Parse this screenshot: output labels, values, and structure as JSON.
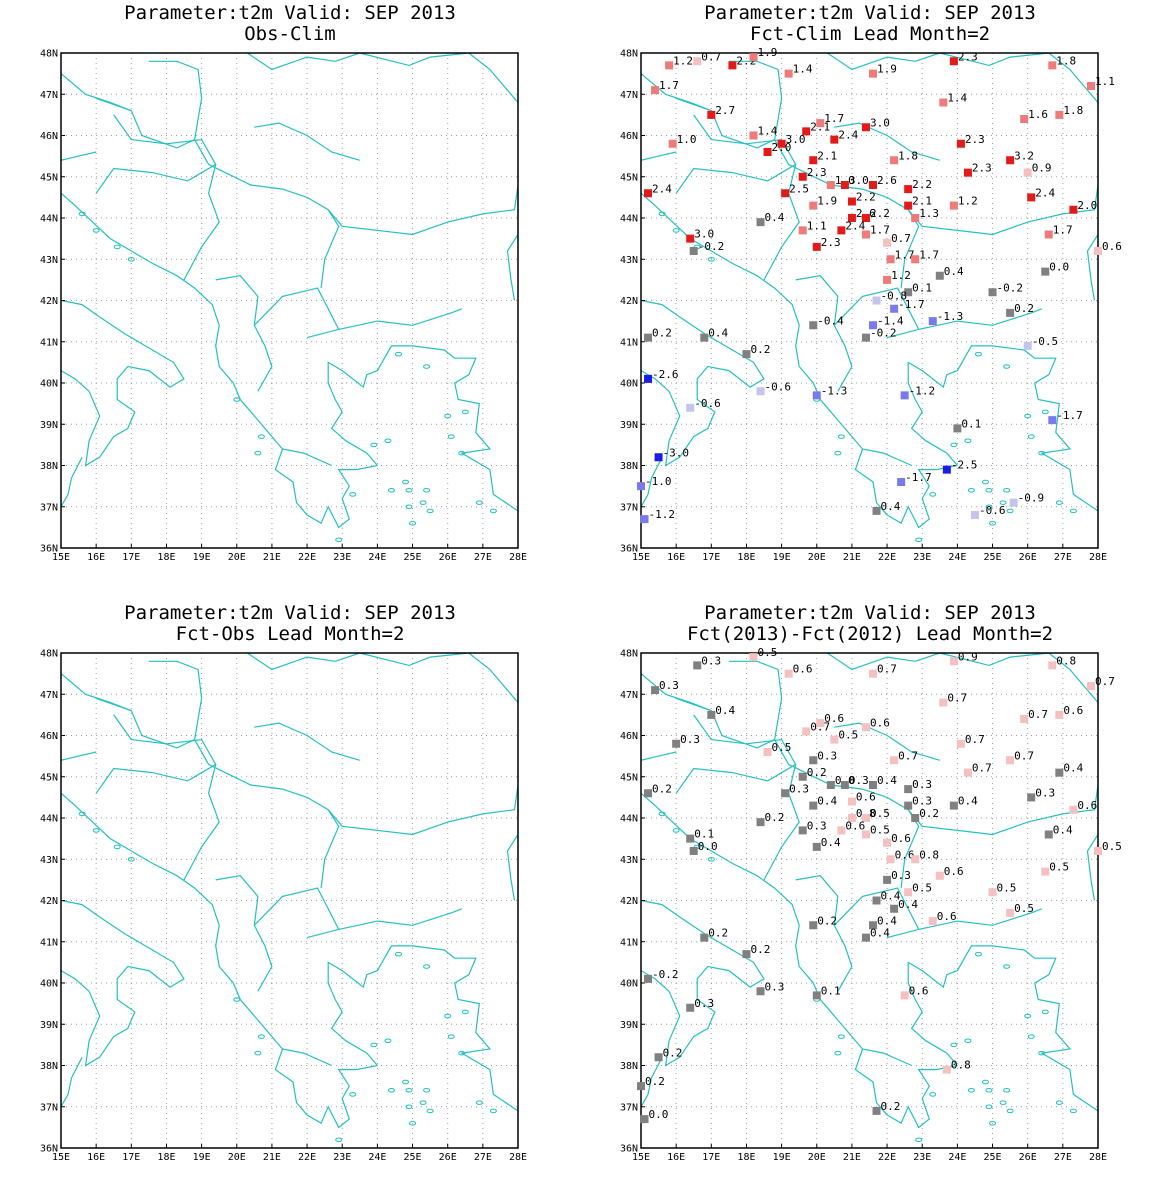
{
  "colors": {
    "coast": "#26c0c0",
    "grid": "#a0a0a0",
    "neutral": "#808080",
    "warm_light": "#f4c0c0",
    "warm_mid": "#ee7a7a",
    "warm_strong": "#e21a1a",
    "cool_light": "#c4c4ee",
    "cool_mid": "#7a7af0",
    "cool_strong": "#1c1ce8"
  },
  "axes": {
    "lon_labels": [
      "15E",
      "16E",
      "17E",
      "18E",
      "19E",
      "20E",
      "21E",
      "22E",
      "23E",
      "24E",
      "25E",
      "26E",
      "27E",
      "28E"
    ],
    "lat_labels": [
      "36N",
      "37N",
      "38N",
      "39N",
      "40N",
      "41N",
      "42N",
      "43N",
      "44N",
      "45N",
      "46N",
      "47N",
      "48N"
    ],
    "lon_range": [
      15,
      28
    ],
    "lat_range": [
      36,
      48
    ]
  },
  "panels": [
    {
      "id": "obs-clim",
      "title": "Parameter:t2m Valid: SEP 2013",
      "subtitle": "Obs-Clim",
      "stations": []
    },
    {
      "id": "fct-clim",
      "title": "Parameter:t2m Valid: SEP 2013",
      "subtitle": "Fct-Clim Lead Month=2",
      "stations": [
        {
          "lon": 15.8,
          "lat": 47.7,
          "v": "1.2"
        },
        {
          "lon": 16.6,
          "lat": 47.8,
          "v": "0.7"
        },
        {
          "lon": 17.6,
          "lat": 47.7,
          "v": "2.2"
        },
        {
          "lon": 18.2,
          "lat": 47.9,
          "v": "1.9"
        },
        {
          "lon": 19.2,
          "lat": 47.5,
          "v": "1.4"
        },
        {
          "lon": 21.6,
          "lat": 47.5,
          "v": "1.9"
        },
        {
          "lon": 23.9,
          "lat": 47.8,
          "v": "2.3"
        },
        {
          "lon": 26.7,
          "lat": 47.7,
          "v": "1.8"
        },
        {
          "lon": 27.8,
          "lat": 47.2,
          "v": "1.1"
        },
        {
          "lon": 15.4,
          "lat": 47.1,
          "v": "1.7"
        },
        {
          "lon": 17.0,
          "lat": 46.5,
          "v": "2.7"
        },
        {
          "lon": 23.6,
          "lat": 46.8,
          "v": "1.4"
        },
        {
          "lon": 26.9,
          "lat": 46.5,
          "v": "1.8"
        },
        {
          "lon": 25.9,
          "lat": 46.4,
          "v": "1.6"
        },
        {
          "lon": 18.2,
          "lat": 46.0,
          "v": "1.4"
        },
        {
          "lon": 20.1,
          "lat": 46.3,
          "v": "1.7"
        },
        {
          "lon": 19.7,
          "lat": 46.1,
          "v": "2.1"
        },
        {
          "lon": 20.5,
          "lat": 45.9,
          "v": "2.4"
        },
        {
          "lon": 21.4,
          "lat": 46.2,
          "v": "3.0"
        },
        {
          "lon": 15.9,
          "lat": 45.8,
          "v": "1.0"
        },
        {
          "lon": 19.0,
          "lat": 45.8,
          "v": "3.0"
        },
        {
          "lon": 24.1,
          "lat": 45.8,
          "v": "2.3"
        },
        {
          "lon": 18.6,
          "lat": 45.6,
          "v": "2.0"
        },
        {
          "lon": 19.9,
          "lat": 45.4,
          "v": "2.1"
        },
        {
          "lon": 22.2,
          "lat": 45.4,
          "v": "1.8"
        },
        {
          "lon": 25.5,
          "lat": 45.4,
          "v": "3.2"
        },
        {
          "lon": 19.6,
          "lat": 45.0,
          "v": "2.3"
        },
        {
          "lon": 24.3,
          "lat": 45.1,
          "v": "2.3"
        },
        {
          "lon": 26.0,
          "lat": 45.1,
          "v": "0.9"
        },
        {
          "lon": 20.4,
          "lat": 44.8,
          "v": "1.0"
        },
        {
          "lon": 20.8,
          "lat": 44.8,
          "v": "3.0"
        },
        {
          "lon": 21.6,
          "lat": 44.8,
          "v": "2.6"
        },
        {
          "lon": 15.2,
          "lat": 44.6,
          "v": "2.4"
        },
        {
          "lon": 19.1,
          "lat": 44.6,
          "v": "2.5"
        },
        {
          "lon": 22.6,
          "lat": 44.7,
          "v": "2.2"
        },
        {
          "lon": 26.1,
          "lat": 44.5,
          "v": "2.4"
        },
        {
          "lon": 19.9,
          "lat": 44.3,
          "v": "1.9"
        },
        {
          "lon": 21.0,
          "lat": 44.4,
          "v": "2.2"
        },
        {
          "lon": 22.6,
          "lat": 44.3,
          "v": "2.1"
        },
        {
          "lon": 23.9,
          "lat": 44.3,
          "v": "1.2"
        },
        {
          "lon": 27.3,
          "lat": 44.2,
          "v": "2.0"
        },
        {
          "lon": 21.0,
          "lat": 44.0,
          "v": "2.6"
        },
        {
          "lon": 21.4,
          "lat": 44.0,
          "v": "2.2"
        },
        {
          "lon": 22.8,
          "lat": 44.0,
          "v": "1.3"
        },
        {
          "lon": 18.4,
          "lat": 43.9,
          "v": "0.4"
        },
        {
          "lon": 19.6,
          "lat": 43.7,
          "v": "1.1"
        },
        {
          "lon": 20.7,
          "lat": 43.7,
          "v": "2.4"
        },
        {
          "lon": 21.4,
          "lat": 43.6,
          "v": "1.7"
        },
        {
          "lon": 26.6,
          "lat": 43.6,
          "v": "1.7"
        },
        {
          "lon": 16.4,
          "lat": 43.5,
          "v": "3.0"
        },
        {
          "lon": 22.0,
          "lat": 43.4,
          "v": "0.7"
        },
        {
          "lon": 20.0,
          "lat": 43.3,
          "v": "2.3"
        },
        {
          "lon": 16.5,
          "lat": 43.2,
          "v": "-0.2"
        },
        {
          "lon": 28.0,
          "lat": 43.2,
          "v": "0.6"
        },
        {
          "lon": 22.1,
          "lat": 43.0,
          "v": "1.7"
        },
        {
          "lon": 22.8,
          "lat": 43.0,
          "v": "1.7"
        },
        {
          "lon": 26.5,
          "lat": 42.7,
          "v": "0.0"
        },
        {
          "lon": 23.5,
          "lat": 42.6,
          "v": "0.4"
        },
        {
          "lon": 22.0,
          "lat": 42.5,
          "v": "1.2"
        },
        {
          "lon": 22.6,
          "lat": 42.2,
          "v": "0.1"
        },
        {
          "lon": 25.0,
          "lat": 42.2,
          "v": "-0.2"
        },
        {
          "lon": 21.7,
          "lat": 42.0,
          "v": "-0.8"
        },
        {
          "lon": 22.2,
          "lat": 41.8,
          "v": "-1.7"
        },
        {
          "lon": 25.5,
          "lat": 41.7,
          "v": "0.2"
        },
        {
          "lon": 23.3,
          "lat": 41.5,
          "v": "-1.3"
        },
        {
          "lon": 19.9,
          "lat": 41.4,
          "v": "-0.4"
        },
        {
          "lon": 21.6,
          "lat": 41.4,
          "v": "-1.4"
        },
        {
          "lon": 15.2,
          "lat": 41.1,
          "v": "0.2"
        },
        {
          "lon": 16.8,
          "lat": 41.1,
          "v": "0.4"
        },
        {
          "lon": 21.4,
          "lat": 41.1,
          "v": "-0.2"
        },
        {
          "lon": 26.0,
          "lat": 40.9,
          "v": "-0.5"
        },
        {
          "lon": 18.0,
          "lat": 40.7,
          "v": "0.2"
        },
        {
          "lon": 15.2,
          "lat": 40.1,
          "v": "-2.6"
        },
        {
          "lon": 18.4,
          "lat": 39.8,
          "v": "-0.6"
        },
        {
          "lon": 20.0,
          "lat": 39.7,
          "v": "-1.3"
        },
        {
          "lon": 22.5,
          "lat": 39.7,
          "v": "-1.2"
        },
        {
          "lon": 16.4,
          "lat": 39.4,
          "v": "-0.6"
        },
        {
          "lon": 26.7,
          "lat": 39.1,
          "v": "-1.7"
        },
        {
          "lon": 24.0,
          "lat": 38.9,
          "v": "0.1"
        },
        {
          "lon": 15.5,
          "lat": 38.2,
          "v": "-3.0"
        },
        {
          "lon": 23.7,
          "lat": 37.9,
          "v": "-2.5"
        },
        {
          "lon": 22.4,
          "lat": 37.6,
          "v": "-1.7"
        },
        {
          "lon": 15.0,
          "lat": 37.5,
          "v": "-1.0"
        },
        {
          "lon": 25.6,
          "lat": 37.1,
          "v": "-0.9"
        },
        {
          "lon": 21.7,
          "lat": 36.9,
          "v": "0.4"
        },
        {
          "lon": 24.5,
          "lat": 36.8,
          "v": "-0.6"
        },
        {
          "lon": 15.1,
          "lat": 36.7,
          "v": "-1.2"
        }
      ]
    },
    {
      "id": "fct-obs",
      "title": "Parameter:t2m Valid: SEP 2013",
      "subtitle": "Fct-Obs Lead Month=2",
      "stations": []
    },
    {
      "id": "fct-diff",
      "title": "Parameter:t2m Valid: SEP 2013",
      "subtitle": "Fct(2013)-Fct(2012) Lead Month=2",
      "stations": [
        {
          "lon": 16.6,
          "lat": 47.7,
          "v": "0.3"
        },
        {
          "lon": 18.2,
          "lat": 47.9,
          "v": "0.5"
        },
        {
          "lon": 19.2,
          "lat": 47.5,
          "v": "0.6"
        },
        {
          "lon": 21.6,
          "lat": 47.5,
          "v": "0.7"
        },
        {
          "lon": 23.9,
          "lat": 47.8,
          "v": "0.9"
        },
        {
          "lon": 26.7,
          "lat": 47.7,
          "v": "0.8"
        },
        {
          "lon": 27.8,
          "lat": 47.2,
          "v": "0.7"
        },
        {
          "lon": 15.4,
          "lat": 47.1,
          "v": "0.3"
        },
        {
          "lon": 17.0,
          "lat": 46.5,
          "v": "0.4"
        },
        {
          "lon": 23.6,
          "lat": 46.8,
          "v": "0.7"
        },
        {
          "lon": 25.9,
          "lat": 46.4,
          "v": "0.7"
        },
        {
          "lon": 26.9,
          "lat": 46.5,
          "v": "0.6"
        },
        {
          "lon": 20.1,
          "lat": 46.3,
          "v": "0.6"
        },
        {
          "lon": 19.7,
          "lat": 46.1,
          "v": "0.7"
        },
        {
          "lon": 21.4,
          "lat": 46.2,
          "v": "0.6"
        },
        {
          "lon": 16.0,
          "lat": 45.8,
          "v": "0.3"
        },
        {
          "lon": 20.5,
          "lat": 45.9,
          "v": "0.5"
        },
        {
          "lon": 24.1,
          "lat": 45.8,
          "v": "0.7"
        },
        {
          "lon": 18.6,
          "lat": 45.6,
          "v": "0.5"
        },
        {
          "lon": 19.9,
          "lat": 45.4,
          "v": "0.3"
        },
        {
          "lon": 22.2,
          "lat": 45.4,
          "v": "0.7"
        },
        {
          "lon": 25.5,
          "lat": 45.4,
          "v": "0.7"
        },
        {
          "lon": 24.3,
          "lat": 45.1,
          "v": "0.7"
        },
        {
          "lon": 26.9,
          "lat": 45.1,
          "v": "0.4"
        },
        {
          "lon": 19.6,
          "lat": 45.0,
          "v": "0.2"
        },
        {
          "lon": 20.4,
          "lat": 44.8,
          "v": "0.0"
        },
        {
          "lon": 20.8,
          "lat": 44.8,
          "v": "0.3"
        },
        {
          "lon": 21.6,
          "lat": 44.8,
          "v": "0.4"
        },
        {
          "lon": 22.6,
          "lat": 44.7,
          "v": "0.3"
        },
        {
          "lon": 19.1,
          "lat": 44.6,
          "v": "0.3"
        },
        {
          "lon": 15.2,
          "lat": 44.6,
          "v": "0.2"
        },
        {
          "lon": 26.1,
          "lat": 44.5,
          "v": "0.3"
        },
        {
          "lon": 21.0,
          "lat": 44.4,
          "v": "0.6"
        },
        {
          "lon": 19.9,
          "lat": 44.3,
          "v": "0.4"
        },
        {
          "lon": 22.6,
          "lat": 44.3,
          "v": "0.3"
        },
        {
          "lon": 23.9,
          "lat": 44.3,
          "v": "0.4"
        },
        {
          "lon": 27.3,
          "lat": 44.2,
          "v": "0.6"
        },
        {
          "lon": 21.0,
          "lat": 44.0,
          "v": "0.8"
        },
        {
          "lon": 21.4,
          "lat": 44.0,
          "v": "0.5"
        },
        {
          "lon": 22.8,
          "lat": 44.0,
          "v": "0.2"
        },
        {
          "lon": 18.4,
          "lat": 43.9,
          "v": "0.2"
        },
        {
          "lon": 19.6,
          "lat": 43.7,
          "v": "0.3"
        },
        {
          "lon": 20.7,
          "lat": 43.7,
          "v": "0.6"
        },
        {
          "lon": 21.4,
          "lat": 43.6,
          "v": "0.5"
        },
        {
          "lon": 26.6,
          "lat": 43.6,
          "v": "0.4"
        },
        {
          "lon": 16.4,
          "lat": 43.5,
          "v": "0.1"
        },
        {
          "lon": 22.0,
          "lat": 43.4,
          "v": "0.6"
        },
        {
          "lon": 20.0,
          "lat": 43.3,
          "v": "0.4"
        },
        {
          "lon": 16.5,
          "lat": 43.2,
          "v": "0.0"
        },
        {
          "lon": 28.0,
          "lat": 43.2,
          "v": "0.5"
        },
        {
          "lon": 22.1,
          "lat": 43.0,
          "v": "0.6"
        },
        {
          "lon": 22.8,
          "lat": 43.0,
          "v": "0.8"
        },
        {
          "lon": 26.5,
          "lat": 42.7,
          "v": "0.5"
        },
        {
          "lon": 23.5,
          "lat": 42.6,
          "v": "0.6"
        },
        {
          "lon": 22.0,
          "lat": 42.5,
          "v": "0.3"
        },
        {
          "lon": 22.6,
          "lat": 42.2,
          "v": "0.5"
        },
        {
          "lon": 25.0,
          "lat": 42.2,
          "v": "0.5"
        },
        {
          "lon": 21.7,
          "lat": 42.0,
          "v": "0.4"
        },
        {
          "lon": 22.2,
          "lat": 41.8,
          "v": "0.4"
        },
        {
          "lon": 25.5,
          "lat": 41.7,
          "v": "0.5"
        },
        {
          "lon": 23.3,
          "lat": 41.5,
          "v": "0.6"
        },
        {
          "lon": 19.9,
          "lat": 41.4,
          "v": "0.2"
        },
        {
          "lon": 21.6,
          "lat": 41.4,
          "v": "0.4"
        },
        {
          "lon": 16.8,
          "lat": 41.1,
          "v": "0.2"
        },
        {
          "lon": 21.4,
          "lat": 41.1,
          "v": "0.4"
        },
        {
          "lon": 18.0,
          "lat": 40.7,
          "v": "0.2"
        },
        {
          "lon": 15.2,
          "lat": 40.1,
          "v": "-0.2"
        },
        {
          "lon": 18.4,
          "lat": 39.8,
          "v": "0.3"
        },
        {
          "lon": 20.0,
          "lat": 39.7,
          "v": "0.1"
        },
        {
          "lon": 22.5,
          "lat": 39.7,
          "v": "0.6"
        },
        {
          "lon": 16.4,
          "lat": 39.4,
          "v": "0.3"
        },
        {
          "lon": 15.5,
          "lat": 38.2,
          "v": "0.2"
        },
        {
          "lon": 23.7,
          "lat": 37.9,
          "v": "0.8"
        },
        {
          "lon": 15.0,
          "lat": 37.5,
          "v": "0.2"
        },
        {
          "lon": 21.7,
          "lat": 36.9,
          "v": "0.2"
        },
        {
          "lon": 15.1,
          "lat": 36.7,
          "v": "0.0"
        }
      ]
    }
  ]
}
